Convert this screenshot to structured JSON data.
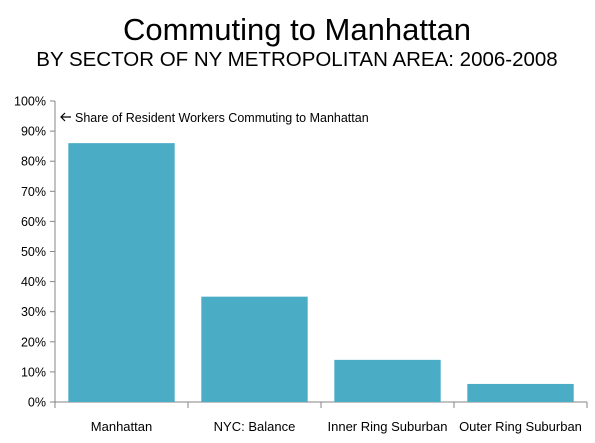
{
  "chart_data": {
    "type": "bar",
    "title": "Commuting to Manhattan",
    "subtitle": "BY SECTOR OF NY METROPOLITAN AREA: 2006-2008",
    "categories": [
      "Manhattan",
      "NYC: Balance",
      "Inner Ring Suburban",
      "Outer Ring Suburban"
    ],
    "series": [
      {
        "values": [
          0.86,
          0.35,
          0.14,
          0.06
        ]
      }
    ],
    "ylim": [
      0,
      1
    ],
    "yticks": [
      "0%",
      "10%",
      "20%",
      "30%",
      "40%",
      "50%",
      "60%",
      "70%",
      "80%",
      "90%",
      "100%"
    ],
    "xlabel": "",
    "ylabel": "",
    "annotation": "Share of Resident Workers Commuting to Manhattan",
    "grid": false,
    "legend": "none",
    "colors": {
      "bar": "#4BACC6",
      "axis": "#868686",
      "tick": "#868686"
    }
  }
}
